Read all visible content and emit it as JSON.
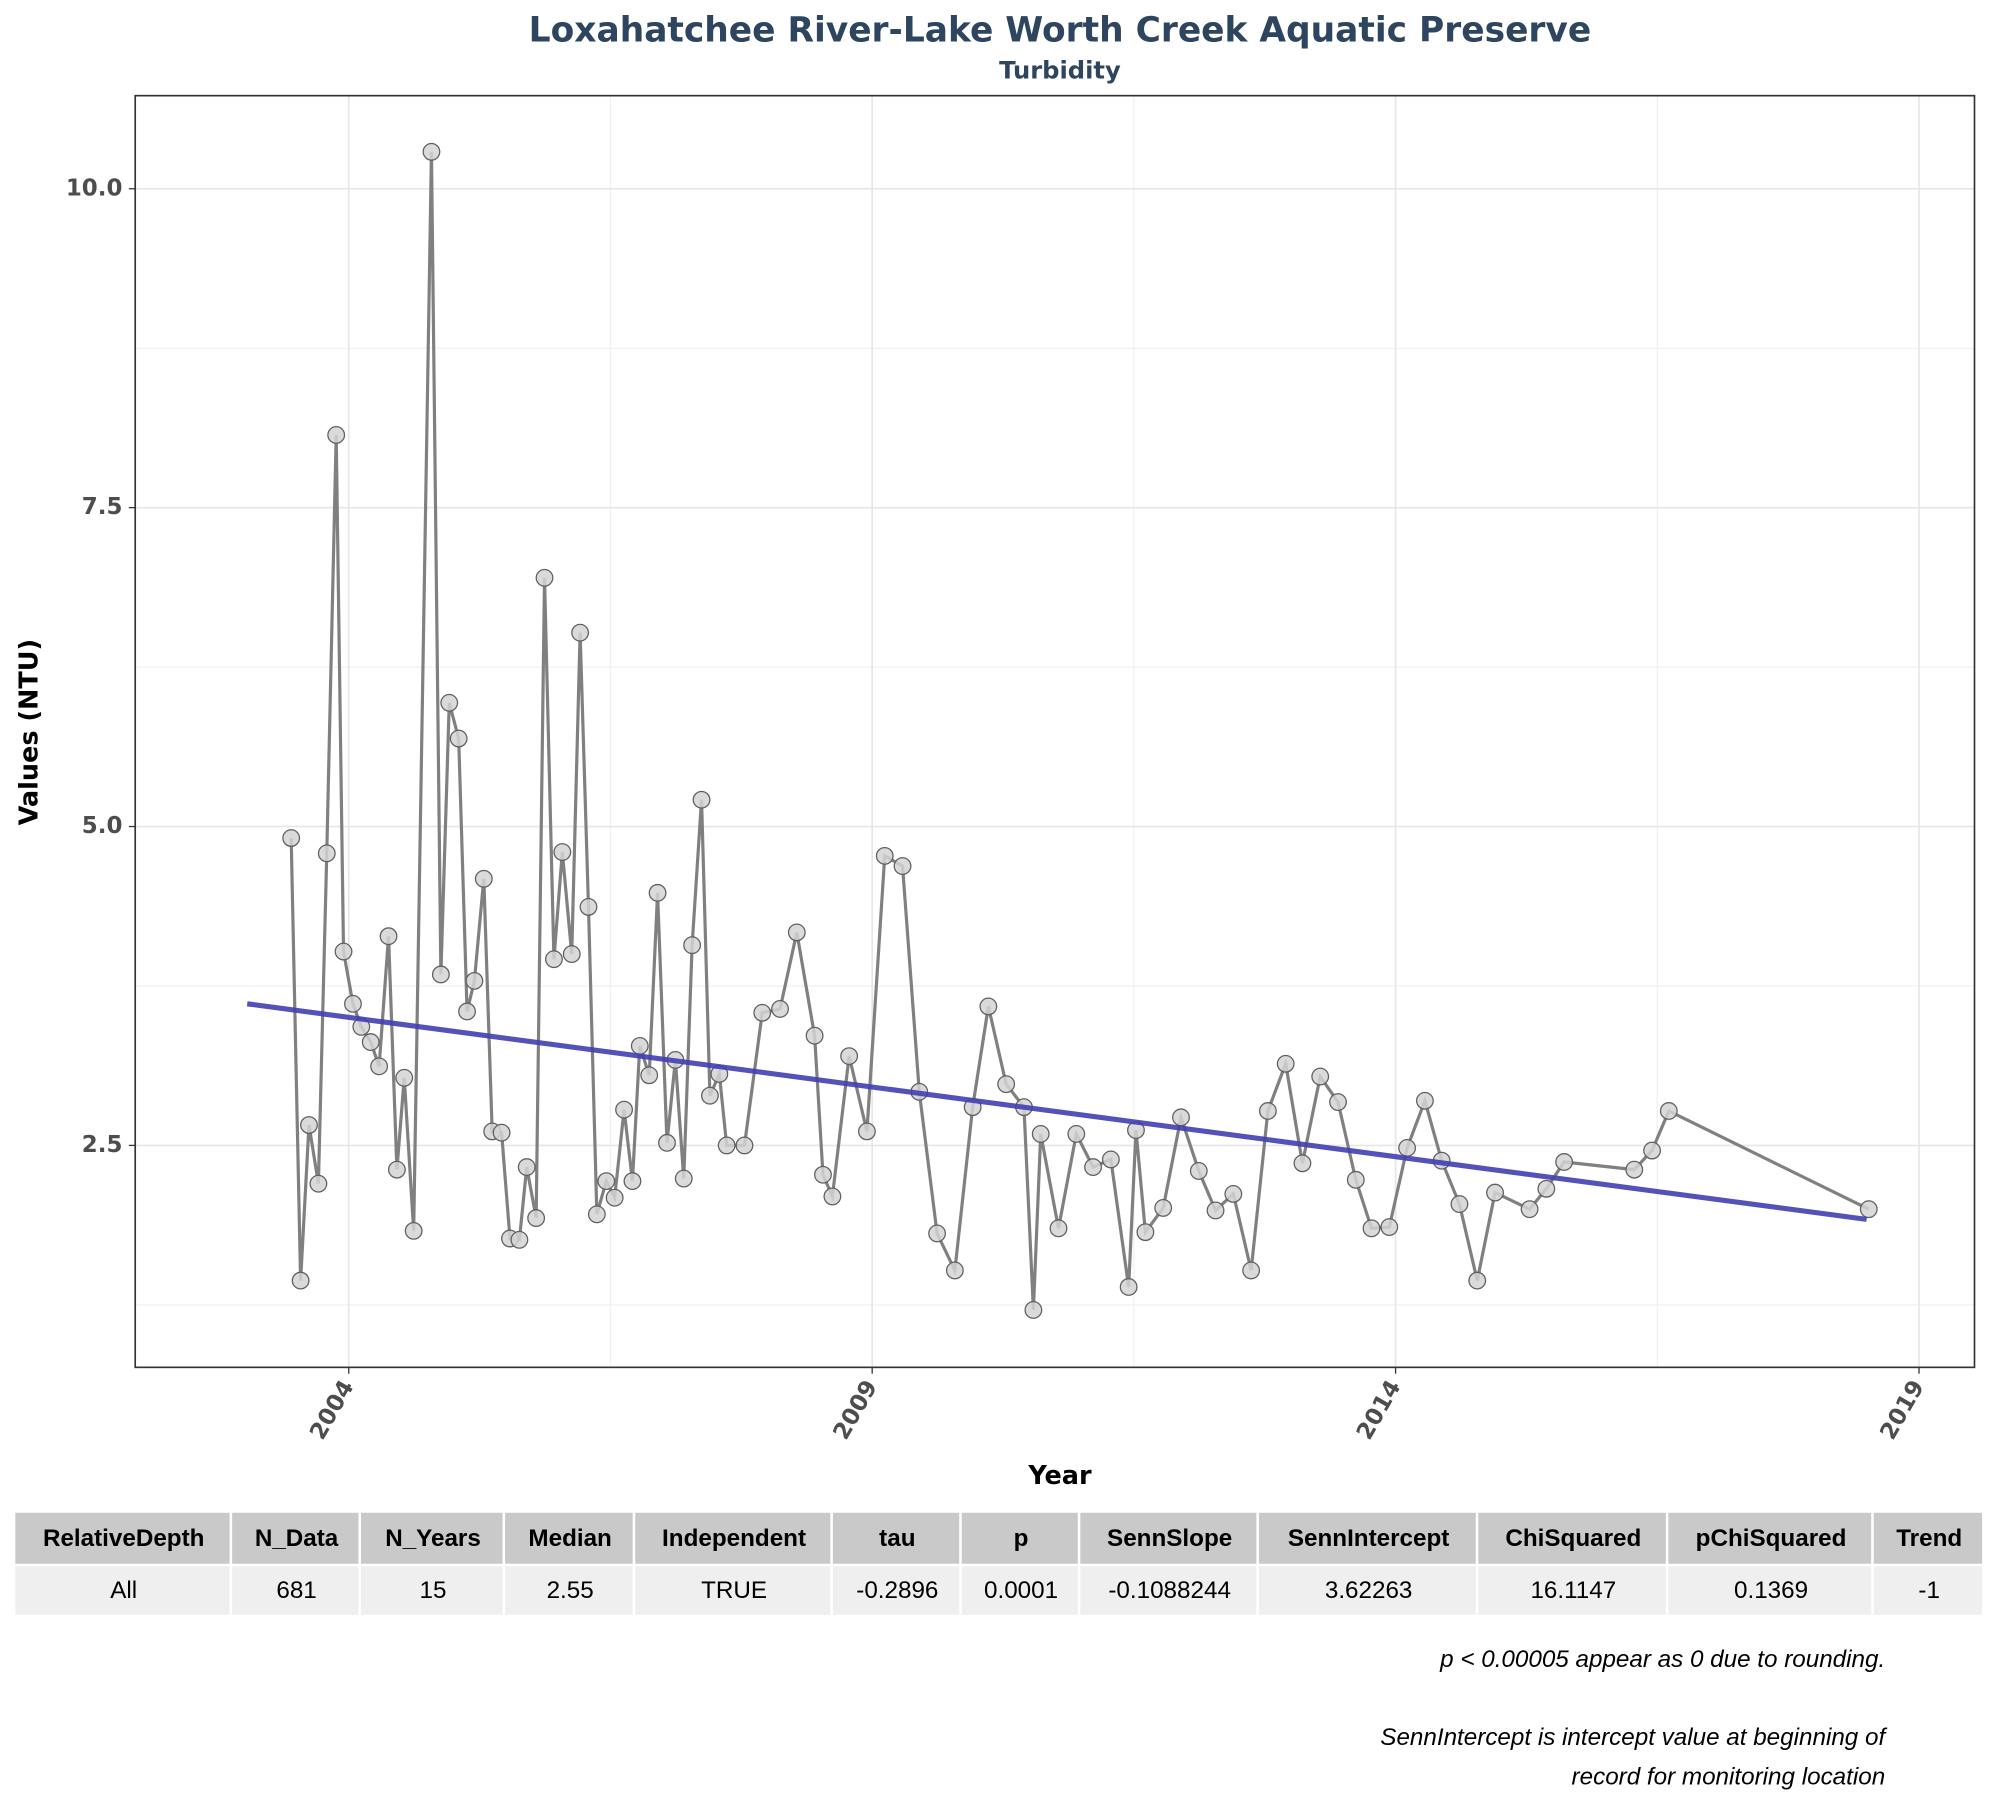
{
  "chart_data": {
    "type": "line",
    "title": "Loxahatchee River-Lake Worth Creek Aquatic Preserve",
    "subtitle": "Turbidity",
    "x_label": "Year",
    "y_label": "Values (NTU)",
    "color": "#808080",
    "marker_fill": "#d3d3d3",
    "marker_edge": "#606060",
    "x": [
      2003.45,
      2003.54,
      2003.62,
      2003.71,
      2003.79,
      2003.88,
      2003.95,
      2004.04,
      2004.12,
      2004.21,
      2004.29,
      2004.38,
      2004.46,
      2004.53,
      2004.62,
      2004.79,
      2004.88,
      2004.96,
      2005.05,
      2005.13,
      2005.2,
      2005.29,
      2005.37,
      2005.46,
      2005.54,
      2005.63,
      2005.7,
      2005.79,
      2005.87,
      2005.96,
      2006.04,
      2006.13,
      2006.21,
      2006.29,
      2006.37,
      2006.46,
      2006.54,
      2006.63,
      2006.71,
      2006.78,
      2006.87,
      2006.95,
      2007.04,
      2007.12,
      2007.2,
      2007.28,
      2007.37,
      2007.45,
      2007.54,
      2007.61,
      2007.78,
      2007.95,
      2008.12,
      2008.28,
      2008.45,
      2008.53,
      2008.62,
      2008.78,
      2008.95,
      2009.12,
      2009.29,
      2009.45,
      2009.62,
      2009.79,
      2009.96,
      2010.11,
      2010.28,
      2010.45,
      2010.54,
      2010.61,
      2010.78,
      2010.95,
      2011.11,
      2011.28,
      2011.45,
      2011.52,
      2011.61,
      2011.78,
      2011.95,
      2012.12,
      2012.28,
      2012.45,
      2012.62,
      2012.78,
      2012.95,
      2013.11,
      2013.28,
      2013.45,
      2013.62,
      2013.77,
      2013.94,
      2014.11,
      2014.28,
      2014.44,
      2014.61,
      2014.78,
      2014.95,
      2015.28,
      2015.44,
      2015.61,
      2016.28,
      2016.45,
      2016.61,
      2018.52
    ],
    "values": [
      4.91,
      1.44,
      2.66,
      2.2,
      4.79,
      8.07,
      4.02,
      3.61,
      3.43,
      3.31,
      3.12,
      4.14,
      2.31,
      3.03,
      1.83,
      10.29,
      3.84,
      5.97,
      5.69,
      3.55,
      3.79,
      4.59,
      2.61,
      2.6,
      1.77,
      1.76,
      2.33,
      1.93,
      6.95,
      3.96,
      4.8,
      4.0,
      6.52,
      4.37,
      1.96,
      2.22,
      2.09,
      2.78,
      2.22,
      3.28,
      3.05,
      4.48,
      2.52,
      3.17,
      2.24,
      4.07,
      5.21,
      2.89,
      3.06,
      2.5,
      2.5,
      3.54,
      3.57,
      4.17,
      3.36,
      2.27,
      2.1,
      3.2,
      2.61,
      4.77,
      4.69,
      2.92,
      1.81,
      1.52,
      2.8,
      3.59,
      2.98,
      2.8,
      1.21,
      2.59,
      1.85,
      2.59,
      2.33,
      2.39,
      1.39,
      2.62,
      1.82,
      2.01,
      2.72,
      2.3,
      1.99,
      2.12,
      1.52,
      2.77,
      3.14,
      2.36,
      3.04,
      2.84,
      2.23,
      1.85,
      1.86,
      2.48,
      2.85,
      2.38,
      2.04,
      1.44,
      2.13,
      2.0,
      2.16,
      2.37,
      2.31,
      2.46,
      2.77,
      2.0
    ],
    "trend_line": {
      "x": [
        2003.03,
        2018.5
      ],
      "values": [
        3.61,
        1.92
      ],
      "color": "#3f3fb0"
    },
    "xlim": [
      2001.96,
      2019.53
    ],
    "ylim": [
      0.76,
      10.73
    ],
    "xticks": [
      2004,
      2009,
      2014,
      2019
    ],
    "yticks": [
      2.5,
      {
        "value": 5,
        "label": "5.0"
      },
      7.5,
      {
        "value": 10,
        "label": "10.0"
      }
    ],
    "x_minor_grid": [
      2006.5,
      2011.5,
      2016.5
    ],
    "y_minor_grid": [
      1.25,
      3.75,
      6.25,
      8.75
    ],
    "grid": true
  },
  "table": {
    "columns": [
      "RelativeDepth",
      "N_Data",
      "N_Years",
      "Median",
      "Independent",
      "tau",
      "p",
      "SennSlope",
      "SennIntercept",
      "ChiSquared",
      "pChiSquared",
      "Trend"
    ],
    "rows": [
      [
        "All",
        "681",
        "15",
        "2.55",
        "TRUE",
        "-0.2896",
        "0.0001",
        "-0.1088244",
        "3.62263",
        "16.1147",
        "0.1369",
        "-1"
      ]
    ]
  },
  "notes": [
    "p < 0.00005 appear as 0 due to rounding.",
    "SennIntercept is intercept value at beginning of",
    "record for monitoring location"
  ]
}
